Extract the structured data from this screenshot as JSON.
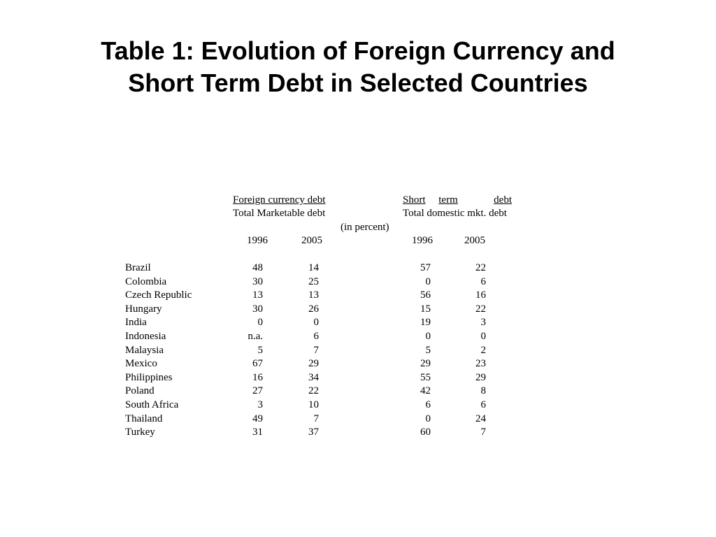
{
  "title": {
    "line1": "Table 1: Evolution of Foreign Currency and",
    "line2": "Short Term Debt in Selected Countries"
  },
  "table": {
    "group1": {
      "line1": "Foreign currency debt",
      "line2": "Total Marketable debt"
    },
    "group2": {
      "line1_words": [
        "Short",
        "term",
        "debt"
      ],
      "line2": "Total domestic mkt. debt"
    },
    "unit_note": "(in percent)",
    "years": [
      "1996",
      "2005",
      "1996",
      "2005"
    ],
    "rows": [
      {
        "country": "Brazil",
        "fc1996": "48",
        "fc2005": "14",
        "st1996": "57",
        "st2005": "22"
      },
      {
        "country": "Colombia",
        "fc1996": "30",
        "fc2005": "25",
        "st1996": "0",
        "st2005": "6"
      },
      {
        "country": "Czech Republic",
        "fc1996": "13",
        "fc2005": "13",
        "st1996": "56",
        "st2005": "16"
      },
      {
        "country": "Hungary",
        "fc1996": "30",
        "fc2005": "26",
        "st1996": "15",
        "st2005": "22"
      },
      {
        "country": "India",
        "fc1996": "0",
        "fc2005": "0",
        "st1996": "19",
        "st2005": "3"
      },
      {
        "country": "Indonesia",
        "fc1996": "n.a.",
        "fc2005": "6",
        "st1996": "0",
        "st2005": "0"
      },
      {
        "country": "Malaysia",
        "fc1996": "5",
        "fc2005": "7",
        "st1996": "5",
        "st2005": "2"
      },
      {
        "country": "Mexico",
        "fc1996": "67",
        "fc2005": "29",
        "st1996": "29",
        "st2005": "23"
      },
      {
        "country": "Philippines",
        "fc1996": "16",
        "fc2005": "34",
        "st1996": "55",
        "st2005": "29"
      },
      {
        "country": "Poland",
        "fc1996": "27",
        "fc2005": "22",
        "st1996": "42",
        "st2005": "8"
      },
      {
        "country": "South Africa",
        "fc1996": "3",
        "fc2005": "10",
        "st1996": "6",
        "st2005": "6"
      },
      {
        "country": "Thailand",
        "fc1996": "49",
        "fc2005": "7",
        "st1996": "0",
        "st2005": "24"
      },
      {
        "country": "Turkey",
        "fc1996": "31",
        "fc2005": "37",
        "st1996": "60",
        "st2005": "7"
      }
    ]
  }
}
